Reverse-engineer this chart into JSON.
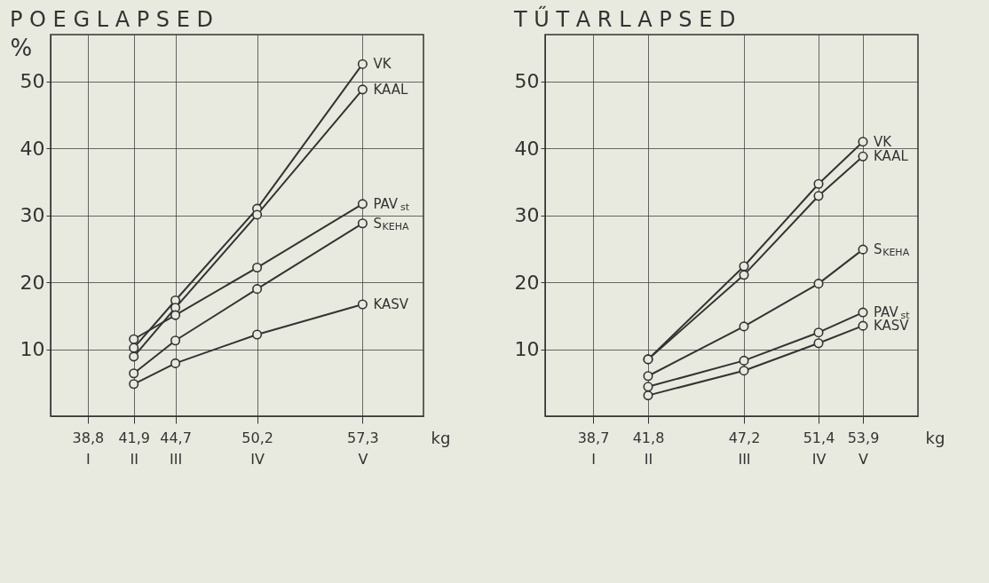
{
  "chart_data": [
    {
      "type": "line",
      "title": "P O E G L A P S E D",
      "ylabel": "%",
      "xlabel": "kg",
      "x": [
        41.9,
        44.7,
        50.2,
        57.3
      ],
      "xlim": [
        36.3,
        61.4
      ],
      "xticks": [
        {
          "value": 38.8,
          "label": "38,8\nI"
        },
        {
          "value": 41.9,
          "label": "41,9\nII"
        },
        {
          "value": 44.7,
          "label": "44,7\nIII"
        },
        {
          "value": 50.2,
          "label": "50,2\nIV"
        },
        {
          "value": 57.3,
          "label": "57,3\nV"
        }
      ],
      "ylim": [
        0,
        57
      ],
      "yticks": [
        10,
        20,
        30,
        40,
        50
      ],
      "grid": true,
      "legend": false,
      "marker": "circle",
      "line_style": "solid",
      "series": [
        {
          "name": "VK",
          "color": "#333333",
          "values": [
            10.2,
            17.3,
            31.0,
            52.6
          ]
        },
        {
          "name": "KAAL",
          "color": "#333333",
          "values": [
            8.9,
            16.2,
            30.1,
            48.8
          ]
        },
        {
          "name": "PAV$_{st}$",
          "color": "#333333",
          "values": [
            11.5,
            15.1,
            22.2,
            31.7
          ]
        },
        {
          "name": "S$_{KEHA}$",
          "color": "#333333",
          "values": [
            6.4,
            11.3,
            19.0,
            28.8
          ]
        },
        {
          "name": "KASV",
          "color": "#333333",
          "values": [
            4.8,
            7.9,
            12.2,
            16.7
          ]
        }
      ]
    },
    {
      "type": "line",
      "title": "T Ű T A R L A P S E D",
      "xlabel": "kg",
      "x": [
        41.8,
        47.2,
        51.4,
        53.9
      ],
      "xlim": [
        36.0,
        57.0
      ],
      "xticks": [
        {
          "value": 38.7,
          "label": "38,7\nI"
        },
        {
          "value": 41.8,
          "label": "41,8\nII"
        },
        {
          "value": 47.2,
          "label": "47,2\nIII"
        },
        {
          "value": 51.4,
          "label": "51,4\nIV"
        },
        {
          "value": 53.9,
          "label": "53,9\nV"
        }
      ],
      "ylim": [
        0,
        57
      ],
      "yticks": [
        10,
        20,
        30,
        40,
        50
      ],
      "grid": true,
      "legend": false,
      "marker": "circle",
      "line_style": "solid",
      "series": [
        {
          "name": "VK",
          "color": "#333333",
          "values": [
            8.5,
            22.4,
            34.7,
            41.0
          ]
        },
        {
          "name": "KAAL",
          "color": "#333333",
          "values": [
            8.5,
            21.1,
            32.9,
            38.8
          ]
        },
        {
          "name": "S$_{KEHA}$",
          "color": "#333333",
          "values": [
            6.0,
            13.4,
            19.8,
            24.9
          ]
        },
        {
          "name": "PAV$_{st}$",
          "color": "#333333",
          "values": [
            4.4,
            8.3,
            12.5,
            15.5
          ]
        },
        {
          "name": "KASV",
          "color": "#333333",
          "values": [
            3.1,
            6.8,
            10.9,
            13.5
          ]
        }
      ]
    }
  ]
}
